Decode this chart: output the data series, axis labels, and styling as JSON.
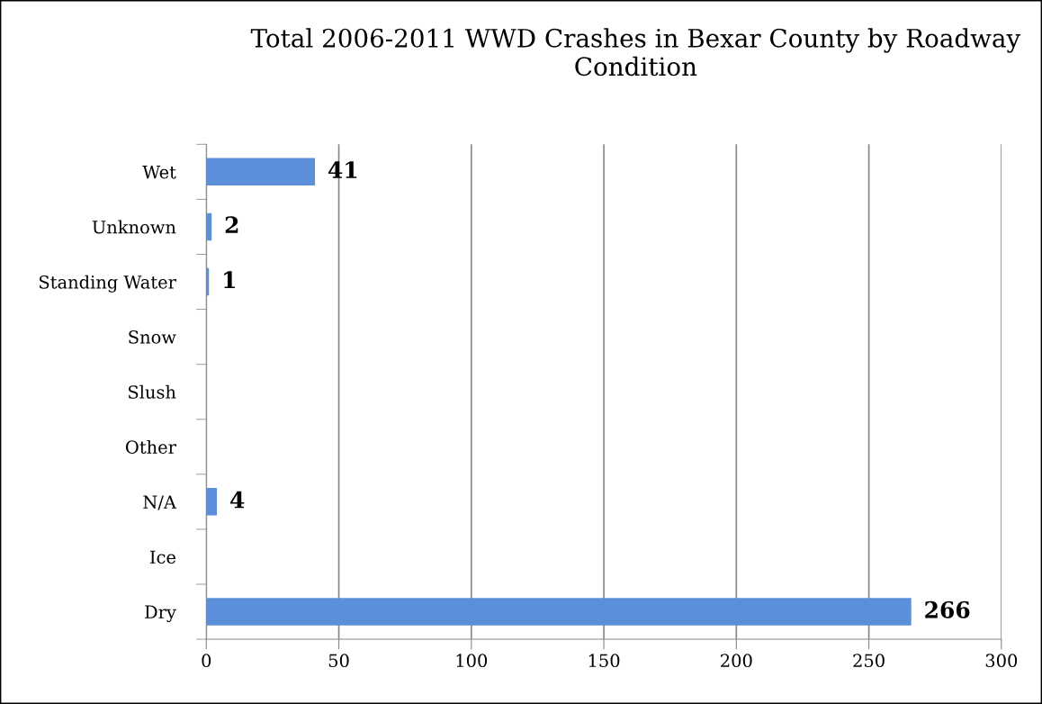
{
  "chart_data": {
    "type": "bar",
    "orientation": "horizontal",
    "title": "Total 2006-2011 WWD Crashes in Bexar County by Roadway Condition",
    "categories": [
      "Wet",
      "Unknown",
      "Standing Water",
      "Snow",
      "Slush",
      "Other",
      "N/A",
      "Ice",
      "Dry"
    ],
    "values": [
      41,
      2,
      1,
      0,
      0,
      0,
      4,
      0,
      266
    ],
    "value_labels": [
      "41",
      "2",
      "1",
      null,
      null,
      null,
      "4",
      null,
      "266"
    ],
    "color": "#5b8fd9",
    "xlim": [
      0,
      300
    ],
    "xticks": [
      0,
      50,
      100,
      150,
      200,
      250,
      300
    ],
    "grid": "x",
    "legend": false
  }
}
